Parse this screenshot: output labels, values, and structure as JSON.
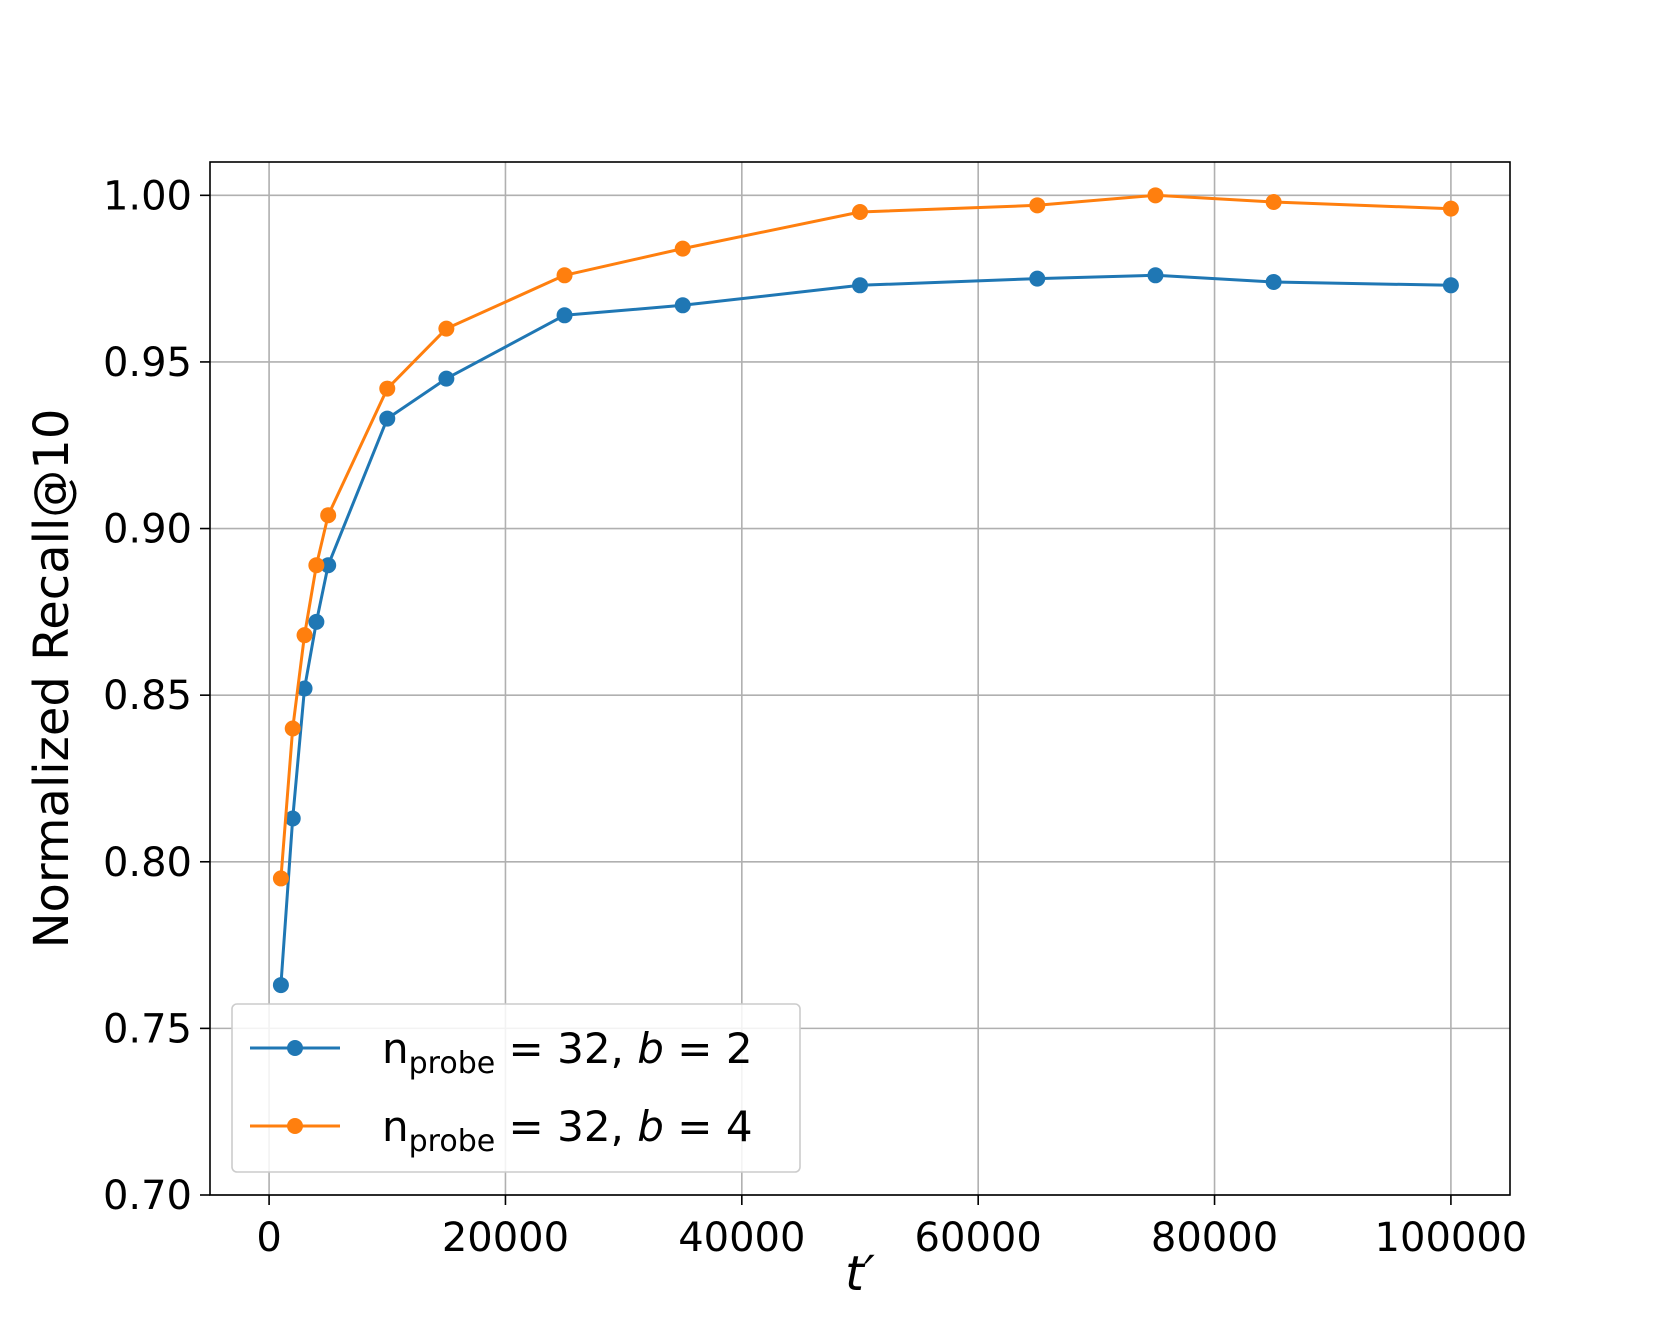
{
  "chart_data": {
    "type": "line",
    "xlabel": "t′",
    "ylabel": "Normalized Recall@10",
    "xlim": [
      -5000,
      105000
    ],
    "ylim": [
      0.7,
      1.01
    ],
    "xticks": [
      0,
      20000,
      40000,
      60000,
      80000,
      100000
    ],
    "xtick_labels": [
      "0",
      "20000",
      "40000",
      "60000",
      "80000",
      "100000"
    ],
    "yticks": [
      0.7,
      0.75,
      0.8,
      0.85,
      0.9,
      0.95,
      1.0
    ],
    "ytick_labels": [
      "0.70",
      "0.75",
      "0.80",
      "0.85",
      "0.90",
      "0.95",
      "1.00"
    ],
    "grid": true,
    "legend_position": "bottom-left",
    "x": [
      1000,
      2000,
      3000,
      4000,
      5000,
      10000,
      15000,
      25000,
      35000,
      50000,
      65000,
      75000,
      85000,
      100000
    ],
    "series": [
      {
        "legend_main": "n",
        "legend_sub": "probe",
        "legend_rest": " = 32, ",
        "legend_var": "b",
        "legend_eq": " = 2",
        "color": "#1f77b4",
        "values": [
          0.763,
          0.813,
          0.852,
          0.872,
          0.889,
          0.933,
          0.945,
          0.964,
          0.967,
          0.973,
          0.975,
          0.976,
          0.974,
          0.973
        ]
      },
      {
        "legend_main": "n",
        "legend_sub": "probe",
        "legend_rest": " = 32, ",
        "legend_var": "b",
        "legend_eq": " = 4",
        "color": "#ff7f0e",
        "values": [
          0.795,
          0.84,
          0.868,
          0.889,
          0.904,
          0.942,
          0.96,
          0.976,
          0.984,
          0.995,
          0.997,
          1.0,
          0.998,
          0.996
        ]
      }
    ]
  }
}
